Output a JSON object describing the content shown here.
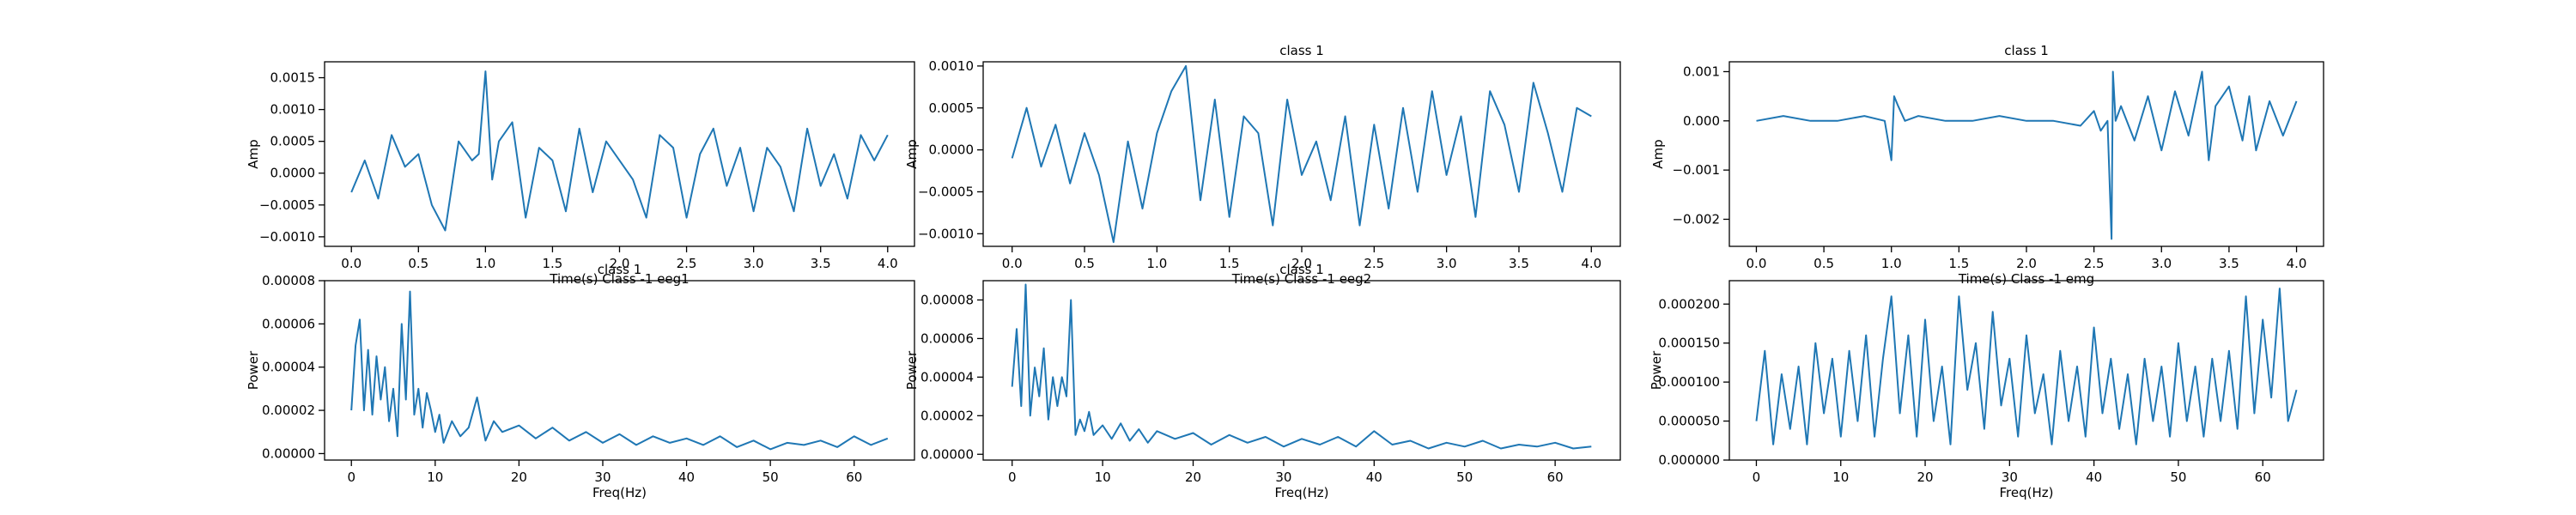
{
  "chart_data": [
    {
      "type": "line",
      "xlabel": "Time(s) Class -1 eeg1",
      "ylabel": "Amp",
      "xlim": [
        -0.2,
        4.2
      ],
      "ylim": [
        -0.00115,
        0.00175
      ],
      "xticks": [
        0.0,
        0.5,
        1.0,
        1.5,
        2.0,
        2.5,
        3.0,
        3.5,
        4.0
      ],
      "xtick_labels": [
        "0.0",
        "0.5",
        "1.0",
        "1.5",
        "2.0",
        "2.5",
        "3.0",
        "3.5",
        "4.0"
      ],
      "yticks": [
        -0.001,
        -0.0005,
        0.0,
        0.0005,
        0.001,
        0.0015
      ],
      "ytick_labels": [
        "−0.0010",
        "−0.0005",
        "0.0000",
        "0.0005",
        "0.0010",
        "0.0015"
      ],
      "series": [
        {
          "x": [
            0.0,
            0.1,
            0.2,
            0.3,
            0.4,
            0.5,
            0.6,
            0.7,
            0.8,
            0.9,
            0.95,
            1.0,
            1.05,
            1.1,
            1.2,
            1.3,
            1.4,
            1.5,
            1.6,
            1.7,
            1.8,
            1.9,
            2.0,
            2.1,
            2.2,
            2.3,
            2.4,
            2.5,
            2.6,
            2.7,
            2.8,
            2.9,
            3.0,
            3.1,
            3.2,
            3.3,
            3.4,
            3.5,
            3.6,
            3.7,
            3.8,
            3.9,
            4.0
          ],
          "y": [
            -0.0003,
            0.0002,
            -0.0004,
            0.0006,
            0.0001,
            0.0003,
            -0.0005,
            -0.0009,
            0.0005,
            0.0002,
            0.0003,
            0.0016,
            -0.0001,
            0.0005,
            0.0008,
            -0.0007,
            0.0004,
            0.0002,
            -0.0006,
            0.0007,
            -0.0003,
            0.0005,
            0.0002,
            -0.0001,
            -0.0007,
            0.0006,
            0.0004,
            -0.0007,
            0.0003,
            0.0007,
            -0.0002,
            0.0004,
            -0.0006,
            0.0004,
            0.0001,
            -0.0006,
            0.0007,
            -0.0002,
            0.0003,
            -0.0004,
            0.0006,
            0.0002,
            0.0006
          ]
        }
      ]
    },
    {
      "type": "line",
      "title": "class 1",
      "xlabel": "Time(s) Class -1 eeg2",
      "ylabel": "Amp",
      "xlim": [
        -0.2,
        4.2
      ],
      "ylim": [
        -0.00115,
        0.00105
      ],
      "xticks": [
        0.0,
        0.5,
        1.0,
        1.5,
        2.0,
        2.5,
        3.0,
        3.5,
        4.0
      ],
      "xtick_labels": [
        "0.0",
        "0.5",
        "1.0",
        "1.5",
        "2.0",
        "2.5",
        "3.0",
        "3.5",
        "4.0"
      ],
      "yticks": [
        -0.001,
        -0.0005,
        0.0,
        0.0005,
        0.001
      ],
      "ytick_labels": [
        "−0.0010",
        "−0.0005",
        "0.0000",
        "0.0005",
        "0.0010"
      ],
      "series": [
        {
          "x": [
            0.0,
            0.1,
            0.2,
            0.3,
            0.4,
            0.5,
            0.6,
            0.7,
            0.8,
            0.9,
            1.0,
            1.1,
            1.2,
            1.3,
            1.4,
            1.5,
            1.6,
            1.7,
            1.8,
            1.9,
            2.0,
            2.1,
            2.2,
            2.3,
            2.4,
            2.5,
            2.6,
            2.7,
            2.8,
            2.9,
            3.0,
            3.1,
            3.2,
            3.3,
            3.4,
            3.5,
            3.6,
            3.7,
            3.8,
            3.9,
            4.0
          ],
          "y": [
            -0.0001,
            0.0005,
            -0.0002,
            0.0003,
            -0.0004,
            0.0002,
            -0.0003,
            -0.0011,
            0.0001,
            -0.0007,
            0.0002,
            0.0007,
            0.001,
            -0.0006,
            0.0006,
            -0.0008,
            0.0004,
            0.0002,
            -0.0009,
            0.0006,
            -0.0003,
            0.0001,
            -0.0006,
            0.0004,
            -0.0009,
            0.0003,
            -0.0007,
            0.0005,
            -0.0005,
            0.0007,
            -0.0003,
            0.0004,
            -0.0008,
            0.0007,
            0.0003,
            -0.0005,
            0.0008,
            0.0002,
            -0.0005,
            0.0005,
            0.0004
          ]
        }
      ]
    },
    {
      "type": "line",
      "title": "class 1",
      "xlabel": "Time(s) Class -1 emg",
      "ylabel": "Amp",
      "xlim": [
        -0.2,
        4.2
      ],
      "ylim": [
        -0.00255,
        0.0012
      ],
      "xticks": [
        0.0,
        0.5,
        1.0,
        1.5,
        2.0,
        2.5,
        3.0,
        3.5,
        4.0
      ],
      "xtick_labels": [
        "0.0",
        "0.5",
        "1.0",
        "1.5",
        "2.0",
        "2.5",
        "3.0",
        "3.5",
        "4.0"
      ],
      "yticks": [
        -0.002,
        -0.001,
        0.0,
        0.001
      ],
      "ytick_labels": [
        "−0.002",
        "−0.001",
        "0.000",
        "0.001"
      ],
      "series": [
        {
          "x": [
            0.0,
            0.2,
            0.4,
            0.6,
            0.8,
            0.95,
            1.0,
            1.02,
            1.05,
            1.1,
            1.2,
            1.4,
            1.6,
            1.8,
            2.0,
            2.2,
            2.4,
            2.5,
            2.55,
            2.6,
            2.63,
            2.64,
            2.66,
            2.7,
            2.8,
            2.9,
            3.0,
            3.1,
            3.2,
            3.3,
            3.35,
            3.4,
            3.5,
            3.6,
            3.65,
            3.7,
            3.8,
            3.9,
            4.0
          ],
          "y": [
            0.0,
            0.0001,
            0.0,
            0.0,
            0.0001,
            0.0,
            -0.0008,
            0.0005,
            0.0003,
            0.0,
            0.0001,
            0.0,
            0.0,
            0.0001,
            0.0,
            0.0,
            -0.0001,
            0.0002,
            -0.0002,
            0.0,
            -0.0024,
            0.001,
            0.0,
            0.0003,
            -0.0004,
            0.0005,
            -0.0006,
            0.0006,
            -0.0003,
            0.001,
            -0.0008,
            0.0003,
            0.0007,
            -0.0004,
            0.0005,
            -0.0006,
            0.0004,
            -0.0003,
            0.0004
          ]
        }
      ]
    },
    {
      "type": "line",
      "title": "class 1",
      "xlabel": "Freq(Hz)",
      "ylabel": "Power",
      "xlim": [
        -3.2,
        67.2
      ],
      "ylim": [
        -3e-06,
        8e-05
      ],
      "xticks": [
        0,
        10,
        20,
        30,
        40,
        50,
        60
      ],
      "xtick_labels": [
        "0",
        "10",
        "20",
        "30",
        "40",
        "50",
        "60"
      ],
      "yticks": [
        0.0,
        2e-05,
        4e-05,
        6e-05,
        8e-05
      ],
      "ytick_labels": [
        "0.00000",
        "0.00002",
        "0.00004",
        "0.00006",
        "0.00008"
      ],
      "series": [
        {
          "x": [
            0,
            0.5,
            1,
            1.5,
            2,
            2.5,
            3,
            3.5,
            4,
            4.5,
            5,
            5.5,
            6,
            6.5,
            7,
            7.5,
            8,
            8.5,
            9,
            9.5,
            10,
            10.5,
            11,
            12,
            13,
            14,
            15,
            16,
            17,
            18,
            20,
            22,
            24,
            26,
            28,
            30,
            32,
            34,
            36,
            38,
            40,
            42,
            44,
            46,
            48,
            50,
            52,
            54,
            56,
            58,
            60,
            62,
            64
          ],
          "y": [
            2e-05,
            5e-05,
            6.2e-05,
            2e-05,
            4.8e-05,
            1.8e-05,
            4.5e-05,
            2.5e-05,
            4e-05,
            1.5e-05,
            3e-05,
            8e-06,
            6e-05,
            2.5e-05,
            7.5e-05,
            1.8e-05,
            3e-05,
            1.2e-05,
            2.8e-05,
            2e-05,
            1e-05,
            1.8e-05,
            5e-06,
            1.5e-05,
            8e-06,
            1.2e-05,
            2.6e-05,
            6e-06,
            1.5e-05,
            1e-05,
            1.3e-05,
            7e-06,
            1.2e-05,
            6e-06,
            1e-05,
            5e-06,
            9e-06,
            4e-06,
            8e-06,
            5e-06,
            7e-06,
            4e-06,
            8e-06,
            3e-06,
            6e-06,
            2e-06,
            5e-06,
            4e-06,
            6e-06,
            3e-06,
            8e-06,
            4e-06,
            7e-06
          ]
        }
      ]
    },
    {
      "type": "line",
      "title": "class 1",
      "xlabel": "Freq(Hz)",
      "ylabel": "Power",
      "xlim": [
        -3.2,
        67.2
      ],
      "ylim": [
        -3e-06,
        9e-05
      ],
      "xticks": [
        0,
        10,
        20,
        30,
        40,
        50,
        60
      ],
      "xtick_labels": [
        "0",
        "10",
        "20",
        "30",
        "40",
        "50",
        "60"
      ],
      "yticks": [
        0.0,
        2e-05,
        4e-05,
        6e-05,
        8e-05
      ],
      "ytick_labels": [
        "0.00000",
        "0.00002",
        "0.00004",
        "0.00006",
        "0.00008"
      ],
      "series": [
        {
          "x": [
            0,
            0.5,
            1,
            1.5,
            2,
            2.5,
            3,
            3.5,
            4,
            4.5,
            5,
            5.5,
            6,
            6.5,
            7,
            7.5,
            8,
            8.5,
            9,
            10,
            11,
            12,
            13,
            14,
            15,
            16,
            18,
            20,
            22,
            24,
            26,
            28,
            30,
            32,
            34,
            36,
            38,
            40,
            42,
            44,
            46,
            48,
            50,
            52,
            54,
            56,
            58,
            60,
            62,
            64
          ],
          "y": [
            3.5e-05,
            6.5e-05,
            2.5e-05,
            8.8e-05,
            2e-05,
            4.5e-05,
            3e-05,
            5.5e-05,
            1.8e-05,
            4e-05,
            2.5e-05,
            4e-05,
            3e-05,
            8e-05,
            1e-05,
            1.8e-05,
            1.2e-05,
            2.2e-05,
            1e-05,
            1.5e-05,
            8e-06,
            1.6e-05,
            7e-06,
            1.3e-05,
            6e-06,
            1.2e-05,
            8e-06,
            1.1e-05,
            5e-06,
            1e-05,
            6e-06,
            9e-06,
            4e-06,
            8e-06,
            5e-06,
            9e-06,
            4e-06,
            1.2e-05,
            5e-06,
            7e-06,
            3e-06,
            6e-06,
            4e-06,
            7e-06,
            3e-06,
            5e-06,
            4e-06,
            6e-06,
            3e-06,
            4e-06
          ]
        }
      ]
    },
    {
      "type": "line",
      "xlabel": "Freq(Hz)",
      "ylabel": "Power",
      "xlim": [
        -3.2,
        67.2
      ],
      "ylim": [
        0.0,
        0.00023
      ],
      "xticks": [
        0,
        10,
        20,
        30,
        40,
        50,
        60
      ],
      "xtick_labels": [
        "0",
        "10",
        "20",
        "30",
        "40",
        "50",
        "60"
      ],
      "yticks": [
        0.0,
        5e-05,
        0.0001,
        0.00015,
        0.0002
      ],
      "ytick_labels": [
        "0.000000",
        "0.000050",
        "0.000100",
        "0.000150",
        "0.000200"
      ],
      "series": [
        {
          "x": [
            0,
            1,
            2,
            3,
            4,
            5,
            6,
            7,
            8,
            9,
            10,
            11,
            12,
            13,
            14,
            15,
            16,
            17,
            18,
            19,
            20,
            21,
            22,
            23,
            24,
            25,
            26,
            27,
            28,
            29,
            30,
            31,
            32,
            33,
            34,
            35,
            36,
            37,
            38,
            39,
            40,
            41,
            42,
            43,
            44,
            45,
            46,
            47,
            48,
            49,
            50,
            51,
            52,
            53,
            54,
            55,
            56,
            57,
            58,
            59,
            60,
            61,
            62,
            63,
            64
          ],
          "y": [
            5e-05,
            0.00014,
            2e-05,
            0.00011,
            4e-05,
            0.00012,
            2e-05,
            0.00015,
            6e-05,
            0.00013,
            3e-05,
            0.00014,
            5e-05,
            0.00016,
            3e-05,
            0.00013,
            0.00021,
            6e-05,
            0.00016,
            3e-05,
            0.00018,
            5e-05,
            0.00012,
            2e-05,
            0.00021,
            9e-05,
            0.00015,
            4e-05,
            0.00019,
            7e-05,
            0.00013,
            3e-05,
            0.00016,
            6e-05,
            0.00011,
            2e-05,
            0.00014,
            5e-05,
            0.00012,
            3e-05,
            0.00017,
            6e-05,
            0.00013,
            4e-05,
            0.00011,
            2e-05,
            0.00013,
            5e-05,
            0.00012,
            3e-05,
            0.00015,
            5e-05,
            0.00012,
            3e-05,
            0.00013,
            5e-05,
            0.00014,
            4e-05,
            0.00021,
            6e-05,
            0.00018,
            8e-05,
            0.00022,
            5e-05,
            9e-05
          ]
        }
      ]
    }
  ]
}
